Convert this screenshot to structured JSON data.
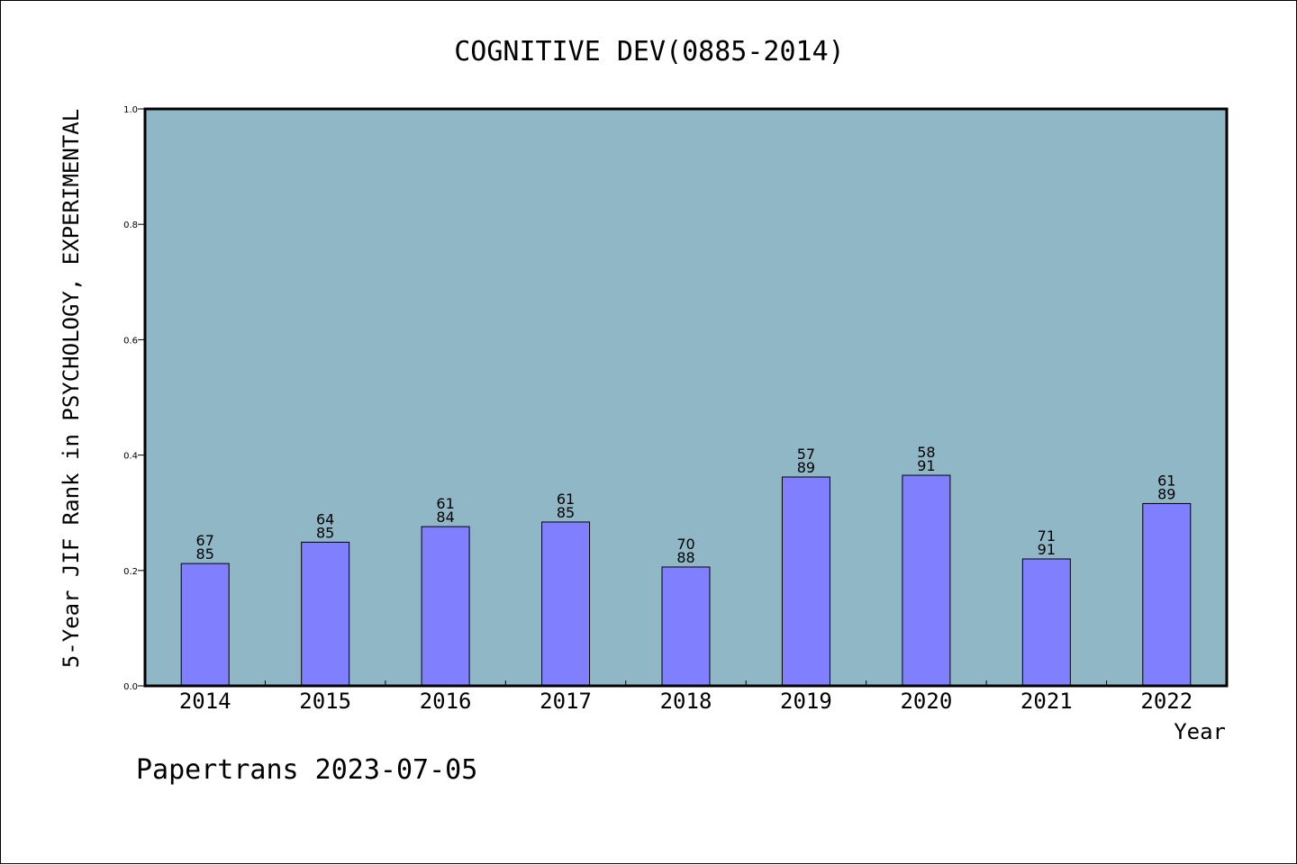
{
  "chart_data": {
    "type": "bar",
    "title": "COGNITIVE DEV(0885-2014)",
    "xlabel": "Year",
    "ylabel": "5-Year JIF Rank in PSYCHOLOGY, EXPERIMENTAL",
    "ylim": [
      0,
      1.0
    ],
    "yticks": [
      "0.0",
      "0.2",
      "0.4",
      "0.6",
      "0.8",
      "1.0"
    ],
    "categories": [
      "2014",
      "2015",
      "2016",
      "2017",
      "2018",
      "2019",
      "2020",
      "2021",
      "2022"
    ],
    "values": [
      0.212,
      0.249,
      0.276,
      0.284,
      0.206,
      0.362,
      0.365,
      0.22,
      0.316
    ],
    "rank": [
      "67",
      "64",
      "61",
      "61",
      "70",
      "57",
      "58",
      "71",
      "61"
    ],
    "total": [
      "85",
      "85",
      "84",
      "85",
      "88",
      "89",
      "91",
      "91",
      "89"
    ],
    "grid": false,
    "colors": {
      "plot_background": "#8fb7c6",
      "bar_fill": "#8080ff",
      "bar_stroke": "#000000"
    }
  },
  "footer": {
    "text": "Papertrans 2023-07-05"
  }
}
